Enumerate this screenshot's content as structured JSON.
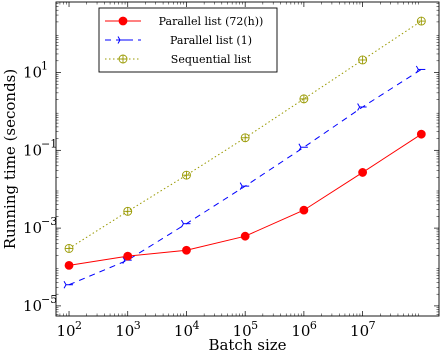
{
  "chart_data": {
    "type": "line",
    "xlabel": "Batch size",
    "ylabel": "Running time (seconds)",
    "xscale": "log",
    "yscale": "log",
    "xlim": [
      60,
      200000000
    ],
    "ylim": [
      5.5e-06,
      650
    ],
    "grid": false,
    "legend_position": "top-left",
    "x_ticks": [
      {
        "base": "10",
        "exp": "2",
        "value": 100
      },
      {
        "base": "10",
        "exp": "3",
        "value": 1000
      },
      {
        "base": "10",
        "exp": "4",
        "value": 10000
      },
      {
        "base": "10",
        "exp": "5",
        "value": 100000
      },
      {
        "base": "10",
        "exp": "6",
        "value": 1000000
      },
      {
        "base": "10",
        "exp": "7",
        "value": 10000000
      }
    ],
    "y_ticks": [
      {
        "base": "10",
        "exp": "−5",
        "value": 1e-05
      },
      {
        "base": "10",
        "exp": "−3",
        "value": 0.001
      },
      {
        "base": "10",
        "exp": "−1",
        "value": 0.1
      },
      {
        "base": "10",
        "exp": "1",
        "value": 10
      }
    ],
    "series": [
      {
        "name": "Parallel list (72(h))",
        "color": "#ff0000",
        "line_style": "solid",
        "marker": "filled-circle",
        "x": [
          100,
          1000,
          10000,
          100000,
          1000000,
          10000000,
          100000000
        ],
        "y": [
          0.00011,
          0.00019,
          0.00027,
          0.00062,
          0.0029,
          0.027,
          0.26
        ]
      },
      {
        "name": "Parallel list (1)",
        "color": "#0000ff",
        "line_style": "dashed",
        "marker": "tri-arrow",
        "x": [
          100,
          1000,
          10000,
          100000,
          1000000,
          10000000,
          100000000
        ],
        "y": [
          3.5e-05,
          0.00015,
          0.0013,
          0.012,
          0.12,
          1.3,
          12
        ]
      },
      {
        "name": "Sequential list",
        "color": "#999900",
        "line_style": "dotted",
        "marker": "open-circle-cross",
        "x": [
          100,
          1000,
          10000,
          100000,
          1000000,
          10000000,
          100000000
        ],
        "y": [
          0.0003,
          0.0027,
          0.023,
          0.21,
          2.1,
          21,
          210
        ]
      }
    ]
  }
}
